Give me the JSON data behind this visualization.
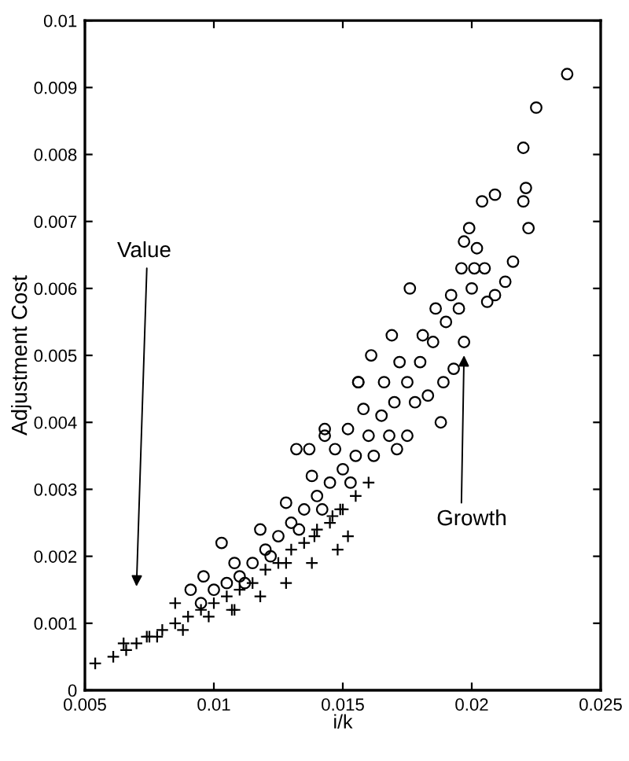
{
  "chart_data": {
    "type": "scatter",
    "xlabel": "i/k",
    "ylabel": "Adjustment Cost",
    "xlim": [
      0.005,
      0.025
    ],
    "xticks": [
      0.005,
      0.01,
      0.015,
      0.02,
      0.025
    ],
    "ylim": [
      0,
      0.01
    ],
    "yticks": [
      0,
      0.001,
      0.002,
      0.003,
      0.004,
      0.005,
      0.006,
      0.007,
      0.008,
      0.009,
      0.01
    ],
    "grid": false,
    "annotations": [
      "Value",
      "Growth"
    ],
    "series": [
      {
        "color": "#000000",
        "marker": "circle",
        "x": [
          0.0237,
          0.0225,
          0.022,
          0.0221,
          0.022,
          0.0222,
          0.0209,
          0.0204,
          0.0216,
          0.0213,
          0.0209,
          0.0206,
          0.0199,
          0.0197,
          0.0202,
          0.0201,
          0.0196,
          0.0197,
          0.0193,
          0.0188,
          0.0189,
          0.0176,
          0.0169,
          0.0183,
          0.0171,
          0.0175,
          0.0156,
          0.0161,
          0.0143,
          0.0137,
          0.0132,
          0.0103,
          0.0096,
          0.0091,
          0.0156,
          0.0143,
          0.0205,
          0.02,
          0.0195,
          0.019,
          0.0185,
          0.018,
          0.0175,
          0.017,
          0.0165,
          0.016,
          0.0155,
          0.015,
          0.0145,
          0.014,
          0.0135,
          0.013,
          0.0125,
          0.012,
          0.0115,
          0.011,
          0.0105,
          0.01,
          0.0095,
          0.0192,
          0.0186,
          0.0181,
          0.0172,
          0.0166,
          0.0158,
          0.0152,
          0.0147,
          0.0138,
          0.0128,
          0.0118,
          0.0108,
          0.0178,
          0.0168,
          0.0162,
          0.0153,
          0.0142,
          0.0133,
          0.0122,
          0.0112
        ],
        "values": [
          0.0092,
          0.0087,
          0.0081,
          0.0075,
          0.0073,
          0.0069,
          0.0074,
          0.0073,
          0.0064,
          0.0061,
          0.0059,
          0.0058,
          0.0069,
          0.0067,
          0.0066,
          0.0063,
          0.0063,
          0.0052,
          0.0048,
          0.004,
          0.0046,
          0.006,
          0.0053,
          0.0044,
          0.0036,
          0.0038,
          0.0046,
          0.005,
          0.0038,
          0.0036,
          0.0036,
          0.0022,
          0.0017,
          0.0015,
          0.0046,
          0.0039,
          0.0063,
          0.006,
          0.0057,
          0.0055,
          0.0052,
          0.0049,
          0.0046,
          0.0043,
          0.0041,
          0.0038,
          0.0035,
          0.0033,
          0.0031,
          0.0029,
          0.0027,
          0.0025,
          0.0023,
          0.0021,
          0.0019,
          0.0017,
          0.0016,
          0.0015,
          0.0013,
          0.0059,
          0.0057,
          0.0053,
          0.0049,
          0.0046,
          0.0042,
          0.0039,
          0.0036,
          0.0032,
          0.0028,
          0.0024,
          0.0019,
          0.0043,
          0.0038,
          0.0035,
          0.0031,
          0.0027,
          0.0024,
          0.002,
          0.0016
        ]
      },
      {
        "color": "#000000",
        "marker": "cross",
        "x": [
          0.0054,
          0.0061,
          0.0066,
          0.0074,
          0.0085,
          0.0107,
          0.0128,
          0.0146,
          0.0152,
          0.0149,
          0.0139,
          0.0065,
          0.007,
          0.0075,
          0.008,
          0.0085,
          0.009,
          0.0095,
          0.01,
          0.0105,
          0.011,
          0.0115,
          0.012,
          0.0125,
          0.013,
          0.0135,
          0.014,
          0.0145,
          0.015,
          0.0155,
          0.016,
          0.0078,
          0.0088,
          0.0098,
          0.0108,
          0.0118,
          0.0128,
          0.0138,
          0.0148
        ],
        "values": [
          0.0004,
          0.0005,
          0.0006,
          0.0008,
          0.0013,
          0.0012,
          0.0019,
          0.0026,
          0.0023,
          0.0027,
          0.0023,
          0.0007,
          0.0007,
          0.0008,
          0.0009,
          0.001,
          0.0011,
          0.0012,
          0.0013,
          0.0014,
          0.0015,
          0.0016,
          0.0018,
          0.0019,
          0.0021,
          0.0022,
          0.0024,
          0.0025,
          0.0027,
          0.0029,
          0.0031,
          0.0008,
          0.0009,
          0.0011,
          0.0012,
          0.0014,
          0.0016,
          0.0019,
          0.0021
        ]
      }
    ]
  }
}
